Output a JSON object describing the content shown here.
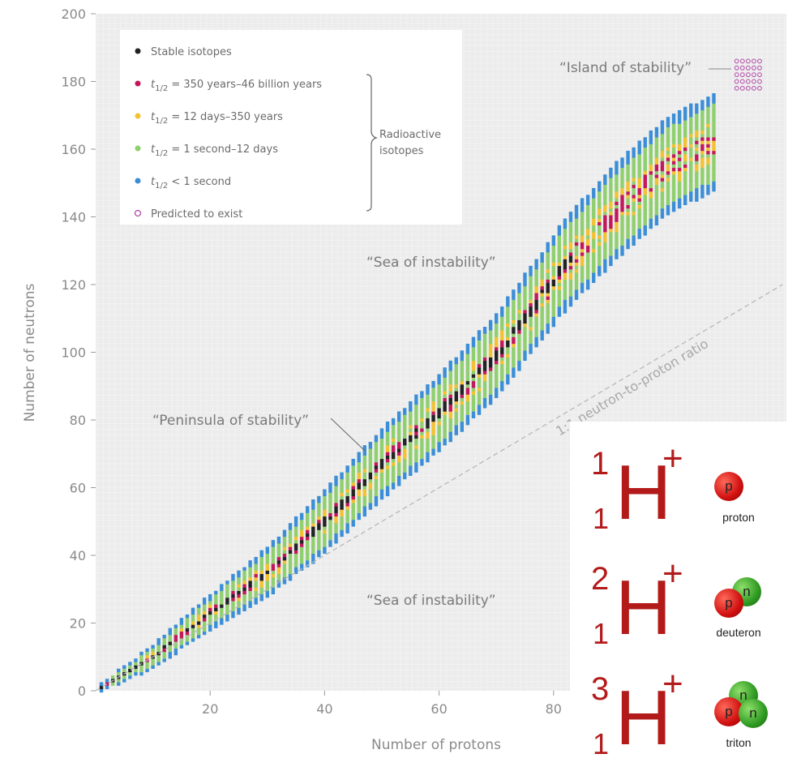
{
  "chart_data": {
    "type": "scatter",
    "xlabel": "Number of protons",
    "ylabel": "Number of neutrons",
    "xlim": [
      0,
      100
    ],
    "ylim": [
      0,
      200
    ],
    "x_ticks": [
      20,
      40,
      60,
      80
    ],
    "y_ticks": [
      0,
      20,
      40,
      60,
      80,
      100,
      120,
      140,
      160,
      180,
      200
    ],
    "grid": true,
    "legend_placement": "top-left",
    "legend": [
      {
        "key": "stable",
        "label": "Stable isotopes",
        "color": "#222222"
      },
      {
        "key": "long",
        "prefix": "t",
        "sub": "1/2",
        "rest": " = 350 years–46 billion years",
        "color": "#c2185b"
      },
      {
        "key": "medium",
        "prefix": "t",
        "sub": "1/2",
        "rest": " = 12 days–350 years",
        "color": "#f2c232"
      },
      {
        "key": "short",
        "prefix": "t",
        "sub": "1/2",
        "rest": " = 1 second–12 days",
        "color": "#8fcf6e"
      },
      {
        "key": "veryshort",
        "prefix": "t",
        "sub": "1/2",
        "rest": " < 1 second",
        "color": "#3b8ed6"
      },
      {
        "key": "predicted",
        "label": "Predicted to exist",
        "color": "#b04aa8"
      }
    ],
    "legend_group_label": [
      "Radioactive",
      "isotopes"
    ],
    "annotations": {
      "island": "“Island of stability”",
      "sea_upper": "“Sea of instability”",
      "sea_lower": "“Sea of instability”",
      "peninsula": "“Peninsula of stability”",
      "ratio_line": "1:1 neutron-to-proton ratio"
    },
    "band_model": {
      "stable_center": [
        [
          1,
          1
        ],
        [
          10,
          10
        ],
        [
          20,
          23
        ],
        [
          30,
          35
        ],
        [
          40,
          50
        ],
        [
          50,
          67
        ],
        [
          60,
          82
        ],
        [
          70,
          99
        ],
        [
          80,
          121
        ]
      ],
      "half_width": [
        [
          1,
          1
        ],
        [
          10,
          3
        ],
        [
          20,
          5
        ],
        [
          30,
          7
        ],
        [
          40,
          9
        ],
        [
          50,
          10
        ],
        [
          60,
          11
        ],
        [
          70,
          12
        ],
        [
          80,
          13
        ],
        [
          90,
          14
        ],
        [
          100,
          14
        ]
      ],
      "extended_center": [
        [
          80,
          122
        ],
        [
          90,
          140
        ],
        [
          100,
          155
        ],
        [
          108,
          162
        ]
      ],
      "predicted_region": {
        "z": [
          112,
          116
        ],
        "n": [
          178,
          186
        ]
      },
      "ratio_line": [
        [
          0,
          0
        ],
        [
          120,
          120
        ]
      ]
    }
  },
  "ions": [
    {
      "mass": "1",
      "charge_number": "1",
      "symbol": "H",
      "charge": "+",
      "particle": "proton",
      "balls": [
        "p"
      ]
    },
    {
      "mass": "2",
      "charge_number": "1",
      "symbol": "H",
      "charge": "+",
      "particle": "deuteron",
      "balls": [
        "p",
        "n"
      ]
    },
    {
      "mass": "3",
      "charge_number": "1",
      "symbol": "H",
      "charge": "+",
      "particle": "triton",
      "balls": [
        "p",
        "n",
        "n"
      ]
    }
  ]
}
